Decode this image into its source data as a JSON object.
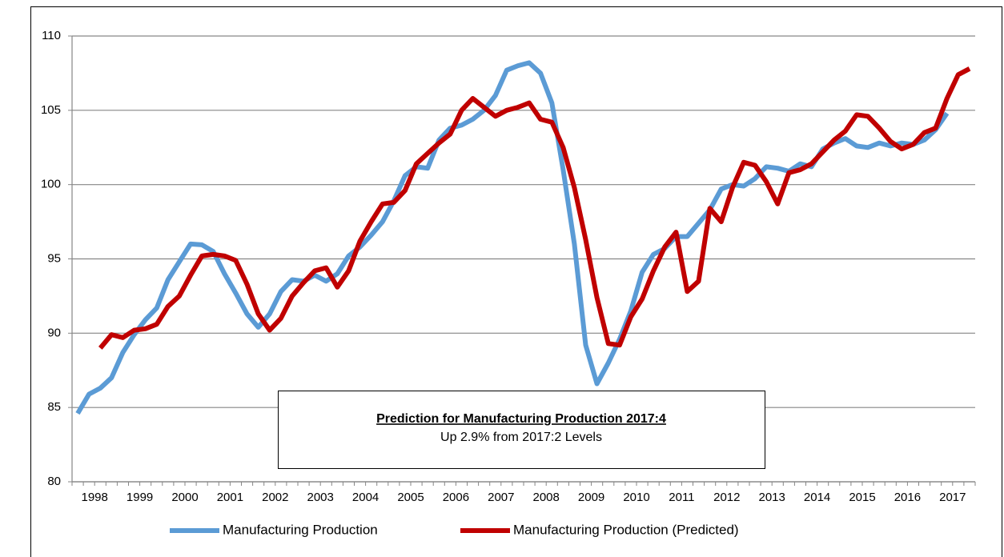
{
  "chart_data": {
    "type": "line",
    "categories": [
      "1998",
      null,
      null,
      null,
      "1999",
      null,
      null,
      null,
      "2000",
      null,
      null,
      null,
      "2001",
      null,
      null,
      null,
      "2002",
      null,
      null,
      null,
      "2003",
      null,
      null,
      null,
      "2004",
      null,
      null,
      null,
      "2005",
      null,
      null,
      null,
      "2006",
      null,
      null,
      null,
      "2007",
      null,
      null,
      null,
      "2008",
      null,
      null,
      null,
      "2009",
      null,
      null,
      null,
      "2010",
      null,
      null,
      null,
      "2011",
      null,
      null,
      null,
      "2012",
      null,
      null,
      null,
      "2013",
      null,
      null,
      null,
      "2014",
      null,
      null,
      null,
      "2015",
      null,
      null,
      null,
      "2016",
      null,
      null,
      null,
      "2017",
      null,
      null,
      null
    ],
    "series": [
      {
        "name": "Manufacturing Production",
        "color": "#5b9bd5",
        "values": [
          84.6,
          85.9,
          86.3,
          87.0,
          88.7,
          89.9,
          90.9,
          91.7,
          93.6,
          94.8,
          96.0,
          95.95,
          95.5,
          94.0,
          92.7,
          91.3,
          90.4,
          91.3,
          92.8,
          93.6,
          93.5,
          93.9,
          93.5,
          94.0,
          95.2,
          95.8,
          96.6,
          97.5,
          98.9,
          100.6,
          101.2,
          101.1,
          103.0,
          103.8,
          104.0,
          104.4,
          105.0,
          106.0,
          107.7,
          108.0,
          108.2,
          107.5,
          105.5,
          101.0,
          96.0,
          89.2,
          86.6,
          88.0,
          89.6,
          91.5,
          94.1,
          95.3,
          95.7,
          96.5,
          96.5,
          97.4,
          98.3,
          99.7,
          100.0,
          99.9,
          100.4,
          101.2,
          101.1,
          100.9,
          101.4,
          101.2,
          102.4,
          102.8,
          103.1,
          102.6,
          102.5,
          102.8,
          102.6,
          102.8,
          102.7,
          103.0,
          103.7,
          104.8,
          null,
          null
        ]
      },
      {
        "name": "Manufacturing Production (Predicted)",
        "color": "#c00000",
        "values": [
          null,
          null,
          89.0,
          89.9,
          89.7,
          90.2,
          90.3,
          90.6,
          91.8,
          92.5,
          93.9,
          95.2,
          95.3,
          95.2,
          94.9,
          93.3,
          91.3,
          90.2,
          91.0,
          92.5,
          93.4,
          94.2,
          94.4,
          93.1,
          94.2,
          96.2,
          97.5,
          98.7,
          98.8,
          99.6,
          101.4,
          102.1,
          102.8,
          103.4,
          105.0,
          105.8,
          105.2,
          104.6,
          105.0,
          105.2,
          105.5,
          104.4,
          104.2,
          102.5,
          99.8,
          96.3,
          92.4,
          89.3,
          89.2,
          91.1,
          92.3,
          94.2,
          95.8,
          96.8,
          92.8,
          93.5,
          98.4,
          97.5,
          99.8,
          101.5,
          101.3,
          100.2,
          98.7,
          100.8,
          101.0,
          101.4,
          102.2,
          103.0,
          103.6,
          104.7,
          104.6,
          103.8,
          102.9,
          102.4,
          102.7,
          103.5,
          103.8,
          105.8,
          107.4,
          107.8
        ]
      }
    ],
    "ylim": [
      80,
      110
    ],
    "yticks": [
      80,
      85,
      90,
      95,
      100,
      105,
      110
    ],
    "grid": true,
    "legend": "bottom",
    "annotation": {
      "title": "Prediction for Manufacturing Production 2017:4",
      "text": "Up 2.9% from 2017:2 Levels"
    }
  }
}
